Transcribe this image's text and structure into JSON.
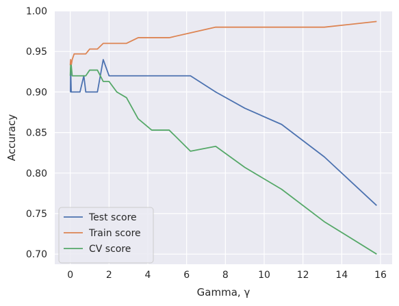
{
  "chart_data": {
    "type": "line",
    "title": "",
    "xlabel": "Gamma, γ",
    "ylabel": "Accuracy",
    "xlim": [
      -0.8,
      16.6
    ],
    "ylim": [
      0.6875,
      1.0
    ],
    "xticks": [
      0,
      2,
      4,
      6,
      8,
      10,
      12,
      14,
      16
    ],
    "yticks": [
      0.7,
      0.75,
      0.8,
      0.85,
      0.9,
      0.95,
      1.0
    ],
    "ytick_labels": [
      "0.70",
      "0.75",
      "0.80",
      "0.85",
      "0.90",
      "0.95",
      "1.00"
    ],
    "grid": true,
    "legend_position": "lower-left",
    "series": [
      {
        "name": "Test score",
        "color": "#4c72b0",
        "x": [
          0.0,
          0.01,
          0.02,
          0.05,
          0.1,
          0.2,
          0.5,
          0.7,
          0.8,
          1.0,
          1.4,
          1.7,
          2.0,
          3.0,
          4.0,
          5.0,
          6.2,
          7.5,
          9.0,
          10.9,
          13.1,
          15.8
        ],
        "y": [
          0.9,
          0.9,
          0.93,
          0.9,
          0.9,
          0.9,
          0.9,
          0.92,
          0.9,
          0.9,
          0.9,
          0.94,
          0.92,
          0.92,
          0.92,
          0.92,
          0.92,
          0.9,
          0.88,
          0.86,
          0.82,
          0.76
        ]
      },
      {
        "name": "Train score",
        "color": "#dd8452",
        "x": [
          0.0,
          0.02,
          0.05,
          0.1,
          0.2,
          0.3,
          0.5,
          0.8,
          1.0,
          1.4,
          1.7,
          2.0,
          2.9,
          3.5,
          4.0,
          5.1,
          6.2,
          7.5,
          9.0,
          10.9,
          13.1,
          15.8
        ],
        "y": [
          0.933,
          0.94,
          0.933,
          0.94,
          0.947,
          0.947,
          0.947,
          0.947,
          0.953,
          0.953,
          0.96,
          0.96,
          0.96,
          0.967,
          0.967,
          0.967,
          0.973,
          0.98,
          0.98,
          0.98,
          0.98,
          0.987
        ]
      },
      {
        "name": "CV score",
        "color": "#55a868",
        "x": [
          0.0,
          0.02,
          0.05,
          0.1,
          0.2,
          0.5,
          0.8,
          1.0,
          1.4,
          1.7,
          2.0,
          2.4,
          2.9,
          3.5,
          4.2,
          5.1,
          6.2,
          7.5,
          9.0,
          10.9,
          13.1,
          15.8
        ],
        "y": [
          0.92,
          0.933,
          0.933,
          0.92,
          0.92,
          0.92,
          0.92,
          0.927,
          0.927,
          0.913,
          0.913,
          0.9,
          0.893,
          0.867,
          0.853,
          0.853,
          0.827,
          0.833,
          0.807,
          0.78,
          0.74,
          0.7
        ]
      }
    ]
  }
}
